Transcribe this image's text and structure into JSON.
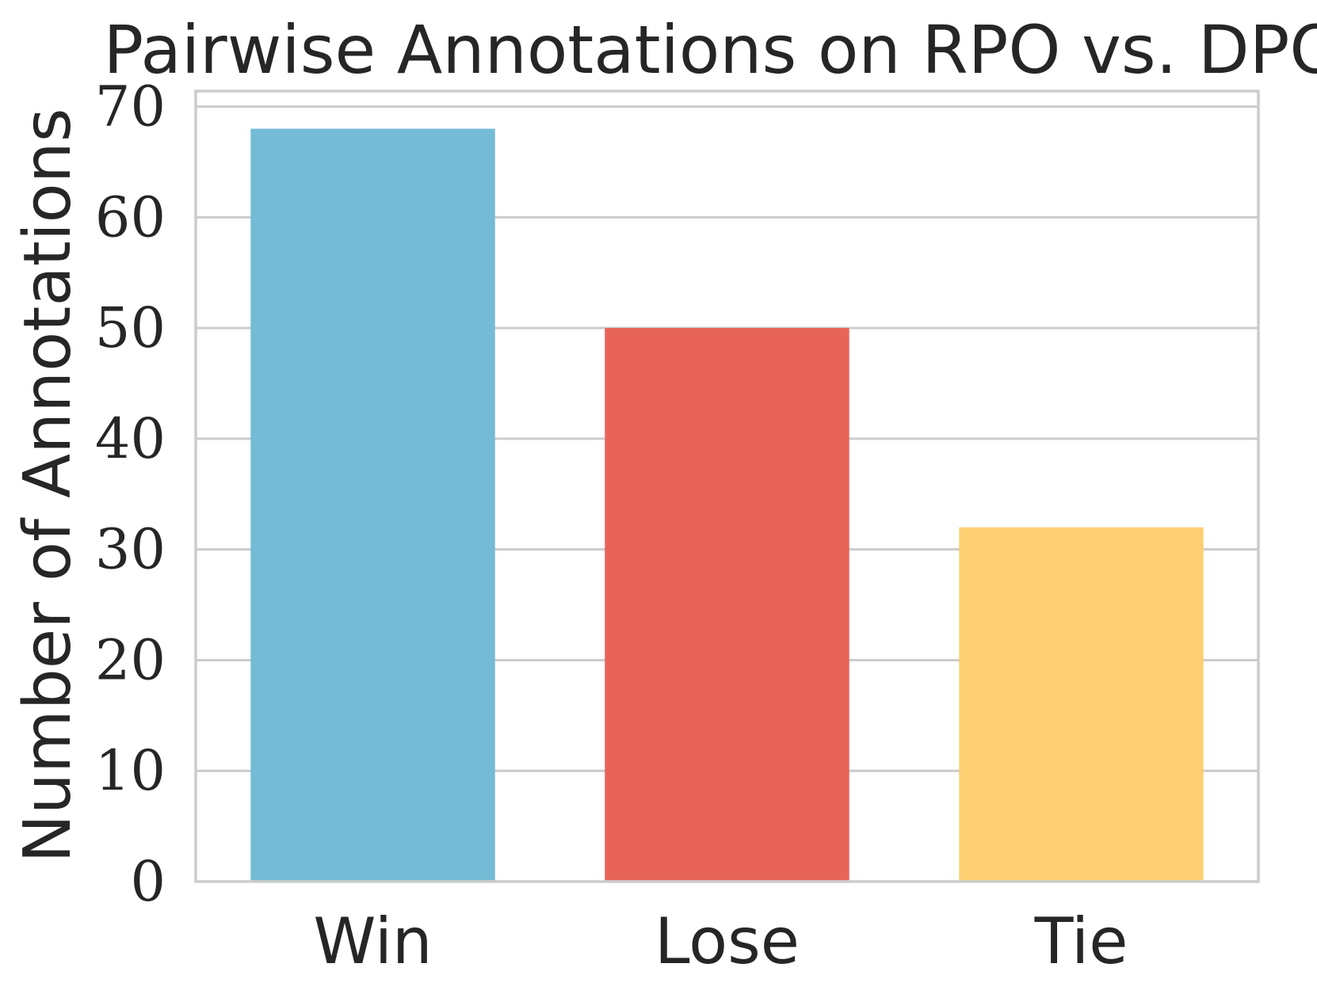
{
  "chart_data": {
    "type": "bar",
    "title": "Pairwise Annotations on RPO vs. DPO",
    "xlabel": "",
    "ylabel": "Number of Annotations",
    "categories": [
      "Win",
      "Lose",
      "Tie"
    ],
    "values": [
      68,
      50,
      32
    ],
    "colors": [
      "#74bbd5",
      "#e86458",
      "#fecf72"
    ],
    "ylim": [
      0,
      71.4
    ],
    "yticks": [
      0,
      10,
      20,
      30,
      40,
      50,
      60,
      70
    ],
    "ytick_labels": [
      "0",
      "10",
      "20",
      "30",
      "40",
      "50",
      "60",
      "70"
    ],
    "grid": true,
    "grid_color": "#cccccc",
    "text_color": "#262626",
    "legend": "none"
  }
}
